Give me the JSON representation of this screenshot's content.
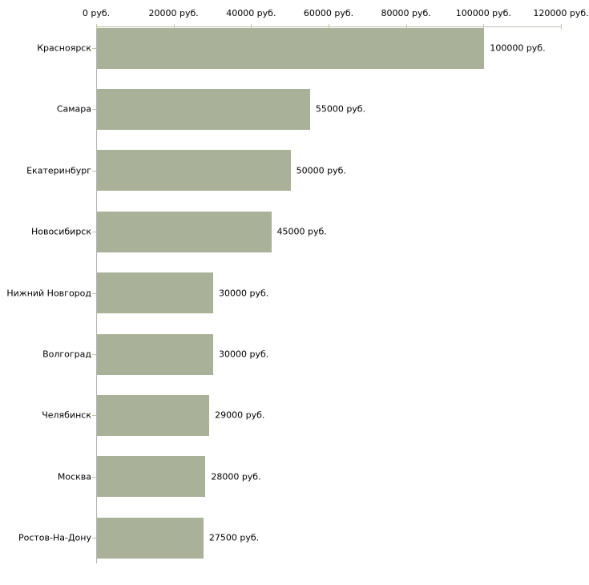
{
  "chart_data": {
    "type": "bar",
    "orientation": "horizontal",
    "categories": [
      "Красноярск",
      "Самара",
      "Екатеринбург",
      "Новосибирск",
      "Нижний Новгород",
      "Волгоград",
      "Челябинск",
      "Москва",
      "Ростов-На-Дону"
    ],
    "values": [
      100000,
      55000,
      50000,
      45000,
      30000,
      30000,
      29000,
      28000,
      27500
    ],
    "value_labels": [
      "100000 руб.",
      "55000 руб.",
      "50000 руб.",
      "45000 руб.",
      "30000 руб.",
      "30000 руб.",
      "29000 руб.",
      "28000 руб.",
      "27500 руб."
    ],
    "x_axis": {
      "position": "top",
      "min": 0,
      "max": 120000,
      "tick_values": [
        0,
        20000,
        40000,
        60000,
        80000,
        100000,
        120000
      ],
      "tick_labels": [
        "0 руб.",
        "20000 руб.",
        "40000 руб.",
        "60000 руб.",
        "80000 руб.",
        "100000 руб.",
        "120000 руб."
      ]
    },
    "unit": "руб.",
    "grid": false,
    "legend": false,
    "colors": {
      "bar": "#aab199",
      "axis_left": "#b3b3b3",
      "axis_top": "#bdbdb0",
      "tick": "#c6c6a4",
      "y_tick": "#c2c2a0",
      "text": "#000000",
      "background": "#ffffff"
    }
  }
}
